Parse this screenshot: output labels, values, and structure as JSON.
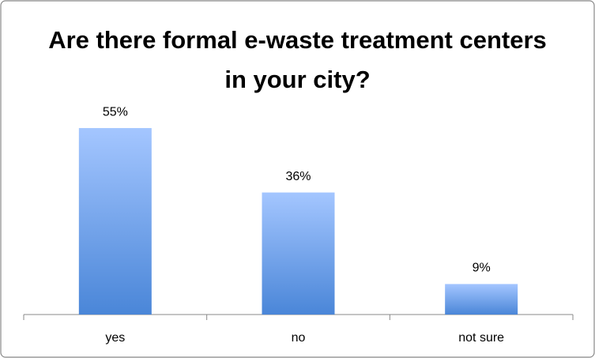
{
  "chart_data": {
    "type": "bar",
    "title": "Are there formal e-waste treatment centers in your city?",
    "categories": [
      "yes",
      "no",
      "not sure"
    ],
    "values": [
      55,
      36,
      9
    ],
    "value_labels": [
      "55%",
      "36%",
      "9%"
    ],
    "color": "#4a86d8"
  }
}
